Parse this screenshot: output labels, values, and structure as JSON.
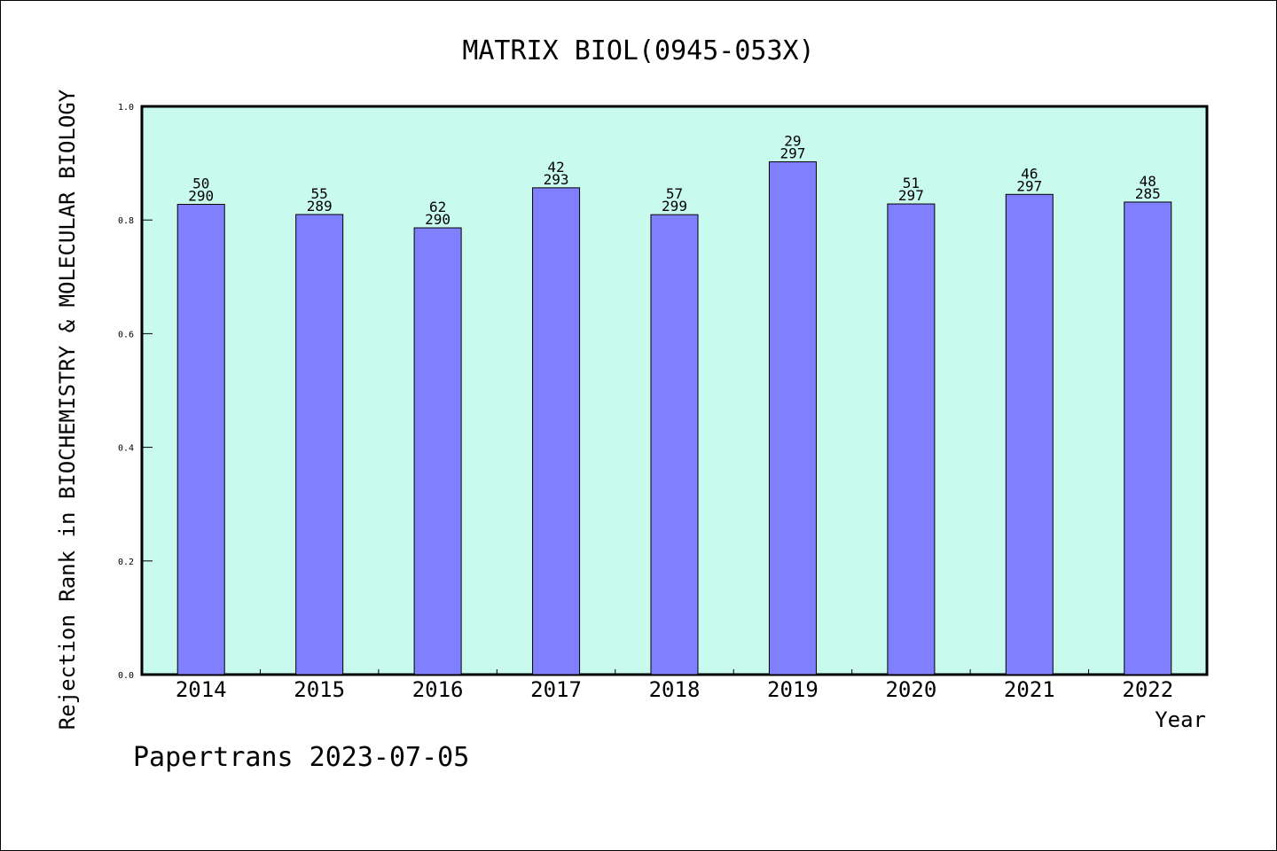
{
  "chart_data": {
    "type": "bar",
    "title": "MATRIX BIOL(0945-053X)",
    "xlabel": "Year",
    "ylabel": "Rejection Rank in BIOCHEMISTRY & MOLECULAR BIOLOGY",
    "categories": [
      "2014",
      "2015",
      "2016",
      "2017",
      "2018",
      "2019",
      "2020",
      "2021",
      "2022"
    ],
    "values": [
      0.8276,
      0.8097,
      0.7862,
      0.8567,
      0.8094,
      0.9024,
      0.8283,
      0.8451,
      0.8316
    ],
    "rank_labels": [
      "50",
      "55",
      "62",
      "42",
      "57",
      "29",
      "51",
      "46",
      "48"
    ],
    "total_labels": [
      "290",
      "289",
      "290",
      "293",
      "299",
      "297",
      "297",
      "297",
      "285"
    ],
    "ylim": [
      0,
      1.0
    ],
    "yticks": [
      "0.0",
      "0.2",
      "0.4",
      "0.6",
      "0.8",
      "1.0"
    ],
    "grid": false,
    "colors": {
      "plot_background": "#c8faee",
      "bar_fill": "#8080ff",
      "bar_stroke": "#000000"
    }
  },
  "footer": "Papertrans 2023-07-05"
}
